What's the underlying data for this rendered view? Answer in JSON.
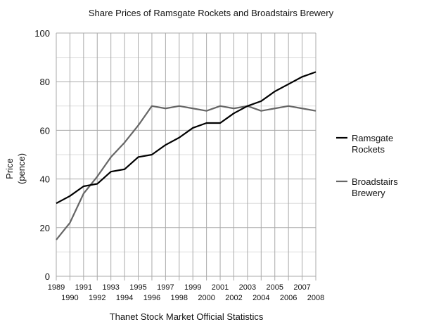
{
  "chart_data": {
    "type": "line",
    "title": "Share Prices of Ramsgate Rockets and Broadstairs Brewery",
    "xlabel": "Thanet Stock Market Official Statistics",
    "ylabel_lines": [
      "Price",
      "(pence)"
    ],
    "ylim": [
      0,
      100
    ],
    "yticks": [
      0,
      20,
      40,
      60,
      80,
      100
    ],
    "grid": true,
    "legend_position": "right",
    "x": [
      "1989",
      "1990",
      "1991",
      "1992",
      "1993",
      "1994",
      "1995",
      "1996",
      "1997",
      "1998",
      "1999",
      "2000",
      "2001",
      "2002",
      "2003",
      "2004",
      "2005",
      "2006",
      "2007",
      "2008"
    ],
    "series": [
      {
        "name": "Ramsgate Rockets",
        "legend_lines": [
          "Ramsgate",
          "Rockets"
        ],
        "color": "#000000",
        "values": [
          30,
          33,
          37,
          38,
          43,
          44,
          49,
          50,
          54,
          57,
          61,
          63,
          63,
          67,
          70,
          72,
          76,
          79,
          82,
          84
        ]
      },
      {
        "name": "Broadstairs Brewery",
        "legend_lines": [
          "Broadstairs",
          "Brewery"
        ],
        "color": "#666666",
        "values": [
          15,
          22,
          34,
          41,
          49,
          55,
          62,
          70,
          69,
          70,
          69,
          68,
          70,
          69,
          70,
          68,
          69,
          70,
          69,
          68
        ]
      }
    ]
  }
}
